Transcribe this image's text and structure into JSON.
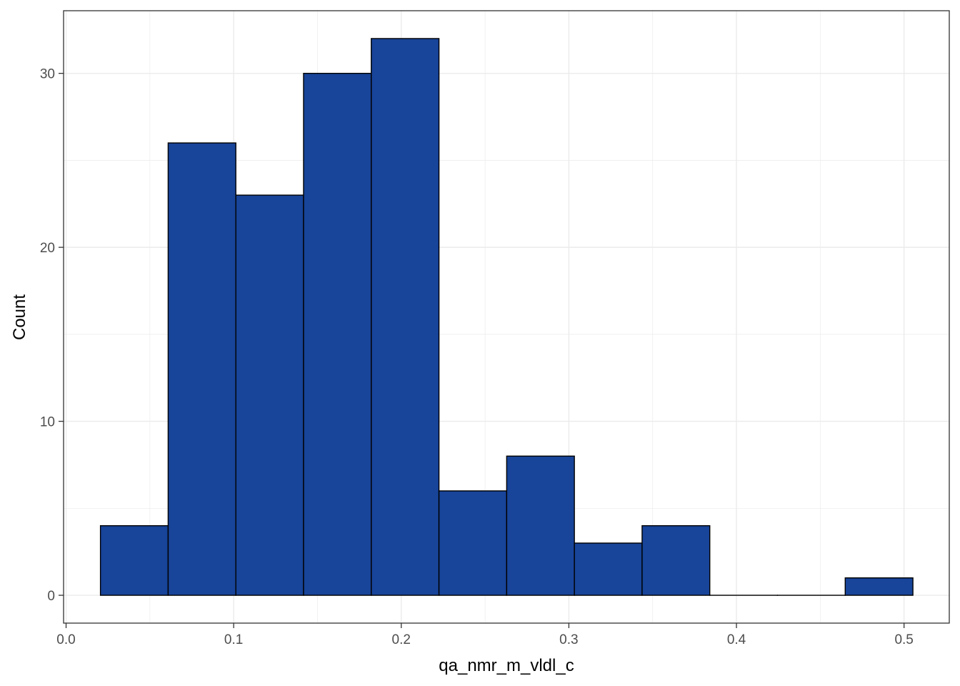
{
  "chart_data": {
    "type": "bar",
    "title": "",
    "xlabel": "qa_nmr_m_vldl_c",
    "ylabel": "Count",
    "xlim": [
      -0.0015,
      0.527
    ],
    "ylim": [
      -1.6,
      33.6
    ],
    "x_ticks": [
      0.0,
      0.1,
      0.2,
      0.3,
      0.4,
      0.5
    ],
    "x_tick_labels": [
      "0.0",
      "0.1",
      "0.2",
      "0.3",
      "0.4",
      "0.5"
    ],
    "y_ticks": [
      0,
      10,
      20,
      30
    ],
    "y_tick_labels": [
      "0",
      "10",
      "20",
      "30"
    ],
    "grid": true,
    "bins": [
      {
        "x0": 0.0205,
        "x1": 0.0609,
        "count": 4
      },
      {
        "x0": 0.0609,
        "x1": 0.1013,
        "count": 26
      },
      {
        "x0": 0.1013,
        "x1": 0.1417,
        "count": 23
      },
      {
        "x0": 0.1417,
        "x1": 0.1821,
        "count": 30
      },
      {
        "x0": 0.1821,
        "x1": 0.2225,
        "count": 32
      },
      {
        "x0": 0.2225,
        "x1": 0.2629,
        "count": 6
      },
      {
        "x0": 0.2629,
        "x1": 0.3033,
        "count": 8
      },
      {
        "x0": 0.3033,
        "x1": 0.3437,
        "count": 3
      },
      {
        "x0": 0.3437,
        "x1": 0.3841,
        "count": 4
      },
      {
        "x0": 0.3841,
        "x1": 0.4245,
        "count": 0
      },
      {
        "x0": 0.4245,
        "x1": 0.4649,
        "count": 0
      },
      {
        "x0": 0.4649,
        "x1": 0.5053,
        "count": 1
      }
    ],
    "colors": {
      "fill": "#184499",
      "outline": "#000000",
      "grid": "#ebebeb",
      "panel_border": "#333333"
    }
  }
}
